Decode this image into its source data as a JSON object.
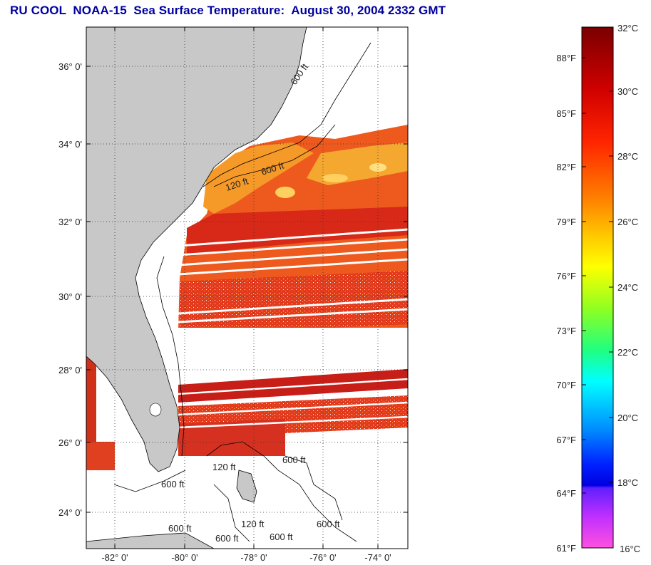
{
  "title": "RU COOL  NOAA-15  Sea Surface Temperature:  August 30, 2004 2332 GMT",
  "map": {
    "lon_labels": [
      "-82° 0'",
      "-80° 0'",
      "-78° 0'",
      "-76° 0'",
      "-74° 0'"
    ],
    "lat_labels": [
      "36° 0'",
      "34° 0'",
      "32° 0'",
      "30° 0'",
      "28° 0'",
      "26° 0'",
      "24° 0'"
    ],
    "contour_labels": [
      "120 ft",
      "600 ft",
      "120 ft",
      "600 ft",
      "600 ft",
      "120 ft",
      "600 ft",
      "600 ft",
      "600 ft",
      "600 ft",
      "600 ft"
    ],
    "colors": {
      "land": "#c8c8c8",
      "cloud": "#ffffff",
      "warm": "#e8401a",
      "hot": "#d0201a",
      "shelf": "#f5a020"
    }
  },
  "colorbar": {
    "fahrenheit_labels": [
      "88°F",
      "85°F",
      "82°F",
      "79°F",
      "76°F",
      "73°F",
      "70°F",
      "67°F",
      "64°F",
      "61°F"
    ],
    "celsius_labels": [
      "32°C",
      "30°C",
      "28°C",
      "26°C",
      "24°C",
      "22°C",
      "20°C",
      "18°C",
      "16°C"
    ],
    "colors": [
      "#800000",
      "#d00000",
      "#ff2000",
      "#ff7a00",
      "#ffb000",
      "#ffff00",
      "#60ff00",
      "#00ff60",
      "#00ffff",
      "#0080ff",
      "#0000ff",
      "#8000ff",
      "#ff40ff"
    ]
  }
}
